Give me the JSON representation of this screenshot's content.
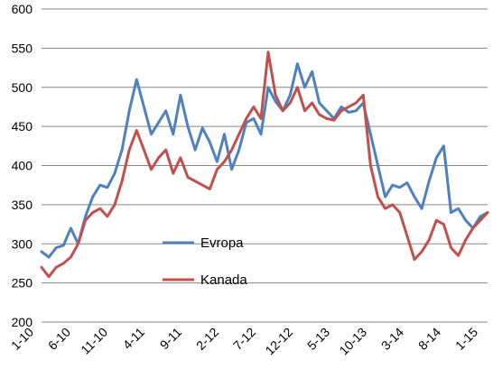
{
  "chart_data": {
    "type": "line",
    "title": "",
    "xlabel": "",
    "ylabel": "",
    "ylim": [
      200,
      600
    ],
    "y_ticks": [
      200,
      250,
      300,
      350,
      400,
      450,
      500,
      550,
      600
    ],
    "x_tick_labels": [
      "1-10",
      "6-10",
      "11-10",
      "4-11",
      "9-11",
      "2-12",
      "7-12",
      "12-12",
      "5-13",
      "10-13",
      "3-14",
      "8-14",
      "1-15"
    ],
    "grid": "horizontal",
    "legend_position": "center-left",
    "series": [
      {
        "name": "Evropa",
        "color": "#4f81bd",
        "x": [
          0,
          1,
          2,
          3,
          4,
          5,
          6,
          7,
          8,
          9,
          10,
          11,
          12,
          13,
          14,
          15,
          16,
          17,
          18,
          19,
          20,
          21,
          22,
          23,
          24,
          25,
          26,
          27,
          28,
          29,
          30,
          31,
          32,
          33,
          34,
          35,
          36,
          37,
          38,
          39,
          40,
          41,
          42,
          43,
          44,
          45,
          46,
          47,
          48,
          49,
          50,
          51,
          52,
          53,
          54,
          55,
          56,
          57,
          58,
          59,
          60,
          61
        ],
        "values": [
          290,
          283,
          295,
          298,
          320,
          300,
          335,
          360,
          375,
          372,
          390,
          420,
          470,
          510,
          475,
          440,
          455,
          470,
          440,
          490,
          450,
          420,
          448,
          430,
          405,
          440,
          395,
          420,
          455,
          460,
          440,
          500,
          482,
          470,
          490,
          530,
          500,
          520,
          480,
          470,
          460,
          475,
          468,
          470,
          480,
          440,
          400,
          360,
          375,
          372,
          378,
          360,
          345,
          380,
          410,
          425,
          340,
          345,
          330,
          320,
          335,
          340
        ]
      },
      {
        "name": "Kanada",
        "color": "#c0504d",
        "x": [
          0,
          1,
          2,
          3,
          4,
          5,
          6,
          7,
          8,
          9,
          10,
          11,
          12,
          13,
          14,
          15,
          16,
          17,
          18,
          19,
          20,
          21,
          22,
          23,
          24,
          25,
          26,
          27,
          28,
          29,
          30,
          31,
          32,
          33,
          34,
          35,
          36,
          37,
          38,
          39,
          40,
          41,
          42,
          43,
          44,
          45,
          46,
          47,
          48,
          49,
          50,
          51,
          52,
          53,
          54,
          55,
          56,
          57,
          58,
          59,
          60,
          61
        ],
        "values": [
          270,
          258,
          270,
          275,
          283,
          300,
          330,
          340,
          345,
          335,
          350,
          380,
          420,
          445,
          420,
          395,
          410,
          420,
          390,
          410,
          385,
          380,
          375,
          370,
          395,
          405,
          420,
          440,
          460,
          475,
          460,
          545,
          490,
          470,
          480,
          500,
          470,
          480,
          465,
          460,
          458,
          470,
          475,
          480,
          490,
          400,
          360,
          345,
          350,
          340,
          310,
          280,
          290,
          305,
          330,
          325,
          295,
          285,
          305,
          320,
          330,
          340
        ]
      }
    ]
  }
}
